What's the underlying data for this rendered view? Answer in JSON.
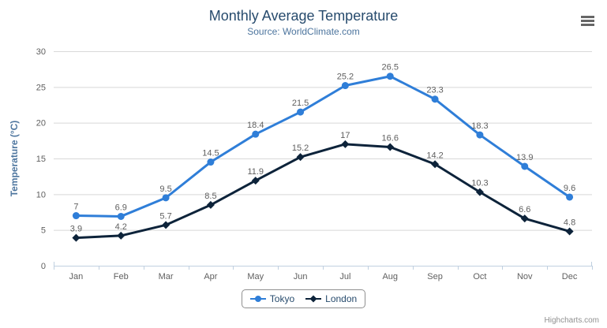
{
  "chart_data": {
    "type": "line",
    "title": "Monthly Average Temperature",
    "subtitle": "Source: WorldClimate.com",
    "xlabel": "",
    "ylabel": "Temperature (°C)",
    "ylim": [
      0,
      30
    ],
    "ytick_interval": 5,
    "grid": true,
    "legend_position": "bottom",
    "data_labels": true,
    "categories": [
      "Jan",
      "Feb",
      "Mar",
      "Apr",
      "May",
      "Jun",
      "Jul",
      "Aug",
      "Sep",
      "Oct",
      "Nov",
      "Dec"
    ],
    "series": [
      {
        "name": "Tokyo",
        "color": "#2f7ed8",
        "marker": "circle",
        "values": [
          7,
          6.9,
          9.5,
          14.5,
          18.4,
          21.5,
          25.2,
          26.5,
          23.3,
          18.3,
          13.9,
          9.6
        ]
      },
      {
        "name": "London",
        "color": "#0d233a",
        "marker": "diamond",
        "values": [
          3.9,
          4.2,
          5.7,
          8.5,
          11.9,
          15.2,
          17,
          16.6,
          14.2,
          10.3,
          6.6,
          4.8
        ]
      }
    ],
    "colors": {
      "title": "#274b6d",
      "subtitle": "#4d759e",
      "axis_title": "#4d759e",
      "axis_labels": "#606060",
      "data_labels": "#606060",
      "grid": "#d8d8d8",
      "axis_line": "#c0d0e0",
      "legend_text": "#274b6d",
      "legend_border": "#909090",
      "credits": "#909090",
      "menu_icon": "#666666"
    }
  },
  "ui": {
    "export_menu_icon": "hamburger-icon",
    "credits": "Highcharts.com"
  }
}
